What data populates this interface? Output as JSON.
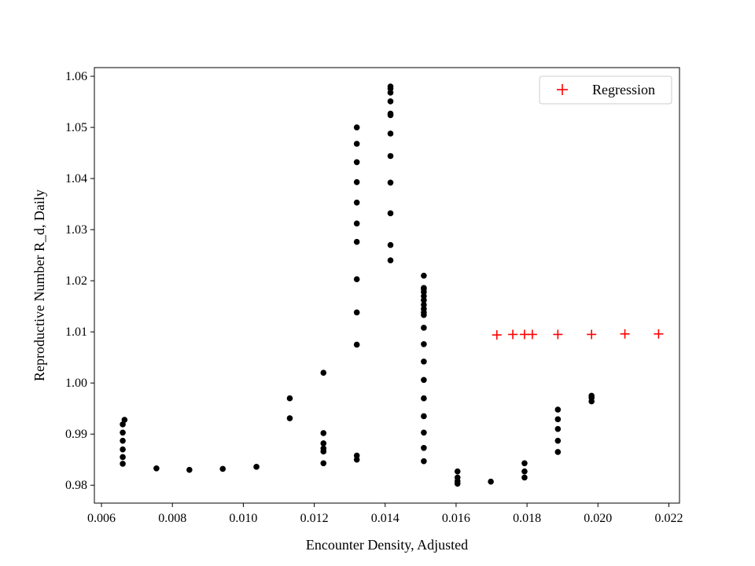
{
  "chart_data": {
    "type": "scatter",
    "title": "",
    "xlabel": "Encounter Density, Adjusted",
    "ylabel": "Reproductive Number R_d, Daily",
    "xlim": [
      0.0058,
      0.0223
    ],
    "ylim": [
      0.9765,
      1.0617
    ],
    "xticks": [
      0.006,
      0.008,
      0.01,
      0.012,
      0.014,
      0.016,
      0.018,
      0.02,
      0.022
    ],
    "xtick_labels": [
      "0.006",
      "0.008",
      "0.010",
      "0.012",
      "0.014",
      "0.016",
      "0.018",
      "0.020",
      "0.022"
    ],
    "yticks": [
      0.98,
      0.99,
      1.0,
      1.01,
      1.02,
      1.03,
      1.04,
      1.05,
      1.06
    ],
    "ytick_labels": [
      "0.98",
      "0.99",
      "1.00",
      "1.01",
      "1.02",
      "1.03",
      "1.04",
      "1.05",
      "1.06"
    ],
    "grid": false,
    "legend_position": "top-right",
    "series": [
      {
        "name": "",
        "marker": "dot",
        "color": "#000000",
        "points": [
          [
            0.0066,
            0.9842
          ],
          [
            0.0066,
            0.9855
          ],
          [
            0.0066,
            0.987
          ],
          [
            0.0066,
            0.9887
          ],
          [
            0.0066,
            0.9903
          ],
          [
            0.0066,
            0.9919
          ],
          [
            0.00665,
            0.9928
          ],
          [
            0.00755,
            0.9833
          ],
          [
            0.00848,
            0.983
          ],
          [
            0.00942,
            0.9832
          ],
          [
            0.01037,
            0.9836
          ],
          [
            0.01131,
            0.9931
          ],
          [
            0.01131,
            0.997
          ],
          [
            0.01226,
            0.9843
          ],
          [
            0.01226,
            0.9866
          ],
          [
            0.01226,
            0.9872
          ],
          [
            0.01226,
            0.9882
          ],
          [
            0.01226,
            0.9902
          ],
          [
            0.01226,
            1.002
          ],
          [
            0.0132,
            0.985
          ],
          [
            0.0132,
            0.9858
          ],
          [
            0.0132,
            1.0075
          ],
          [
            0.0132,
            1.0138
          ],
          [
            0.0132,
            1.0203
          ],
          [
            0.0132,
            1.0276
          ],
          [
            0.0132,
            1.0312
          ],
          [
            0.0132,
            1.0353
          ],
          [
            0.0132,
            1.0393
          ],
          [
            0.0132,
            1.0432
          ],
          [
            0.0132,
            1.0468
          ],
          [
            0.0132,
            1.05
          ],
          [
            0.01415,
            1.024
          ],
          [
            0.01415,
            1.027
          ],
          [
            0.01415,
            1.0332
          ],
          [
            0.01415,
            1.0392
          ],
          [
            0.01415,
            1.0444
          ],
          [
            0.01415,
            1.0488
          ],
          [
            0.01415,
            1.0524
          ],
          [
            0.01415,
            1.0527
          ],
          [
            0.01415,
            1.0551
          ],
          [
            0.01415,
            1.0568
          ],
          [
            0.01415,
            1.0576
          ],
          [
            0.01415,
            1.058
          ],
          [
            0.01509,
            0.9847
          ],
          [
            0.01509,
            0.9873
          ],
          [
            0.01509,
            0.9903
          ],
          [
            0.01509,
            0.9935
          ],
          [
            0.01509,
            0.997
          ],
          [
            0.01509,
            1.0006
          ],
          [
            0.01509,
            1.0042
          ],
          [
            0.01509,
            1.0076
          ],
          [
            0.01509,
            1.0108
          ],
          [
            0.01509,
            1.0133
          ],
          [
            0.01509,
            1.0138
          ],
          [
            0.01509,
            1.0145
          ],
          [
            0.01509,
            1.0153
          ],
          [
            0.01509,
            1.0162
          ],
          [
            0.01509,
            1.017
          ],
          [
            0.01509,
            1.0178
          ],
          [
            0.01509,
            1.0184
          ],
          [
            0.01509,
            1.0186
          ],
          [
            0.01509,
            1.021
          ],
          [
            0.01604,
            0.9803
          ],
          [
            0.01604,
            0.9808
          ],
          [
            0.01604,
            0.9815
          ],
          [
            0.01604,
            0.9827
          ],
          [
            0.01698,
            0.9807
          ],
          [
            0.01793,
            0.9815
          ],
          [
            0.01793,
            0.9827
          ],
          [
            0.01793,
            0.9843
          ],
          [
            0.01887,
            0.9865
          ],
          [
            0.01887,
            0.9887
          ],
          [
            0.01887,
            0.991
          ],
          [
            0.01887,
            0.9929
          ],
          [
            0.01887,
            0.9948
          ],
          [
            0.01982,
            0.9964
          ],
          [
            0.01982,
            0.9971
          ],
          [
            0.01982,
            0.9975
          ]
        ]
      },
      {
        "name": "Regression",
        "marker": "plus",
        "color": "#ff0000",
        "points": [
          [
            0.01715,
            1.0094
          ],
          [
            0.0176,
            1.0095
          ],
          [
            0.01793,
            1.0095
          ],
          [
            0.01815,
            1.0095
          ],
          [
            0.01887,
            1.0095
          ],
          [
            0.01982,
            1.0095
          ],
          [
            0.02076,
            1.0096
          ],
          [
            0.02171,
            1.0096
          ]
        ]
      }
    ]
  }
}
